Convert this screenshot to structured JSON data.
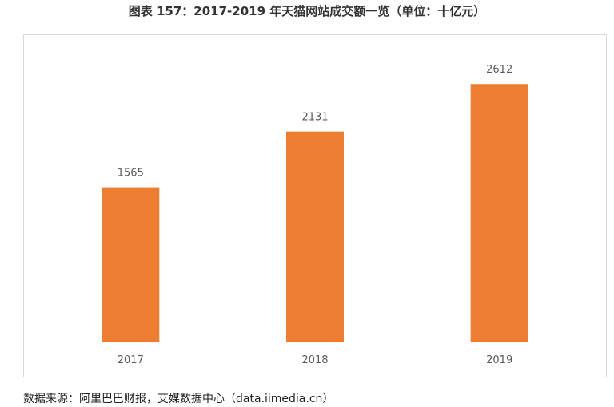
{
  "title": "图表 157：2017-2019 年天猫网站成交额一览（单位：十亿元）",
  "source": "数据来源：阿里巴巴财报，艾媒数据中心（data.iimedia.cn）",
  "colors": {
    "bar": "#ed7d31",
    "axis": "#d9d9d9",
    "label": "#595959"
  },
  "chart_data": {
    "type": "bar",
    "title": "图表 157：2017-2019 年天猫网站成交额一览（单位：十亿元）",
    "categories": [
      "2017",
      "2018",
      "2019"
    ],
    "values": [
      1565,
      2131,
      2612
    ],
    "xlabel": "",
    "ylabel": "",
    "ylim": [
      0,
      2800
    ],
    "grid": false,
    "legend": "none",
    "data_labels": [
      "1565",
      "2131",
      "2612"
    ]
  }
}
